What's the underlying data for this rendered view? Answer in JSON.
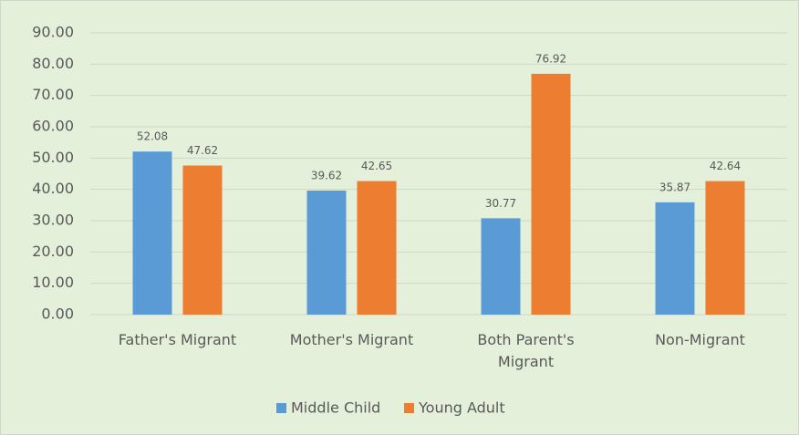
{
  "chart_data": {
    "type": "bar",
    "categories": [
      "Father's Migrant",
      "Mother's Migrant",
      "Both Parent's Migrant",
      "Non-Migrant"
    ],
    "series": [
      {
        "name": "Middle Child",
        "color": "#5b9bd5",
        "values": [
          52.08,
          39.62,
          30.77,
          35.87
        ]
      },
      {
        "name": "Young Adult",
        "color": "#ed7d31",
        "values": [
          47.62,
          42.65,
          76.92,
          42.64
        ]
      }
    ],
    "ylim": [
      0,
      90
    ],
    "yticks": [
      {
        "value": 0,
        "label": "0.00"
      },
      {
        "value": 10,
        "label": "10.00"
      },
      {
        "value": 20,
        "label": "20.00"
      },
      {
        "value": 30,
        "label": "30.00"
      },
      {
        "value": 40,
        "label": "40.00"
      },
      {
        "value": 50,
        "label": "50.00"
      },
      {
        "value": 60,
        "label": "60.00"
      },
      {
        "value": 70,
        "label": "70.00"
      },
      {
        "value": 80,
        "label": "80.00"
      },
      {
        "value": 90,
        "label": "90.00"
      }
    ],
    "grid": true,
    "legend": "bottom"
  }
}
